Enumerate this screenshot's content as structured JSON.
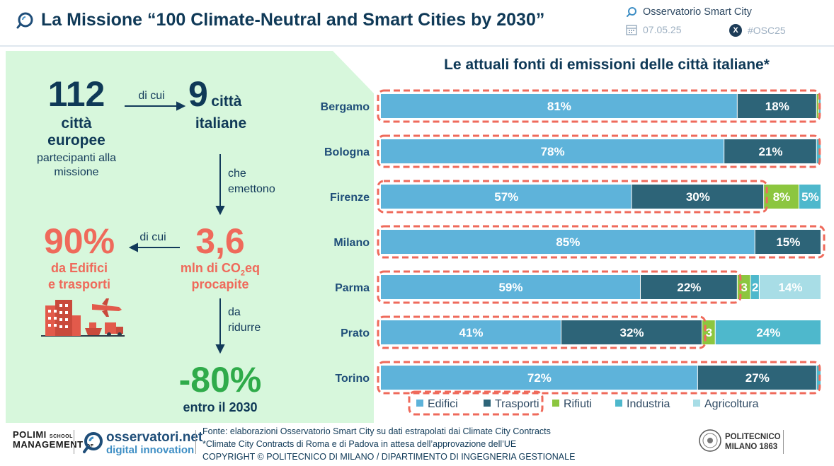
{
  "header": {
    "title": "La Missione “100 Climate-Neutral and Smart Cities by 2030”",
    "org": "Osservatorio Smart City",
    "date": "07.05.25",
    "hashtag": "#OSC25",
    "x_label": "X"
  },
  "left": {
    "european_cities_number": "112",
    "european_cities_label_1": "città",
    "european_cities_label_2": "europee",
    "participants_1": "partecipanti alla",
    "participants_2": "missione",
    "di_cui_1": "di cui",
    "italian_cities_number": "9",
    "italian_cities_label_1": "città",
    "italian_cities_label_2": "italiane",
    "che_emettono_1": "che",
    "che_emettono_2": "emettono",
    "emissions_number": "3,6",
    "emissions_unit_1": "mln di CO",
    "emissions_unit_sub": "2",
    "emissions_unit_2": "eq",
    "emissions_unit_3": "procapite",
    "di_cui_2": "di cui",
    "share_number": "90%",
    "share_label_1": "da Edifici",
    "share_label_2": "e trasporti",
    "da_ridurre_1": "da",
    "da_ridurre_2": "ridurre",
    "target_number": "-80%",
    "target_label": "entro il 2030"
  },
  "chart_data": {
    "type": "bar",
    "orientation": "horizontal",
    "stacked": true,
    "title": "Le attuali fonti di emissioni delle città italiane*",
    "categories": [
      "Bergamo",
      "Bologna",
      "Firenze",
      "Milano",
      "Parma",
      "Prato",
      "Torino"
    ],
    "series": [
      {
        "name": "Edifici",
        "color": "#5eb3da",
        "values": [
          81,
          78,
          57,
          85,
          59,
          41,
          72
        ]
      },
      {
        "name": "Trasporti",
        "color": "#2d6478",
        "values": [
          18,
          21,
          30,
          15,
          22,
          32,
          27
        ]
      },
      {
        "name": "Rifiuti",
        "color": "#8cc63f",
        "values": [
          0.5,
          0,
          8,
          0,
          3,
          3,
          0
        ]
      },
      {
        "name": "Industria",
        "color": "#4eb8cc",
        "values": [
          0.5,
          1,
          5,
          0,
          2,
          24,
          1
        ]
      },
      {
        "name": "Agricoltura",
        "color": "#a8dde6",
        "values": [
          0,
          0,
          0,
          0,
          14,
          0,
          0
        ]
      }
    ],
    "data_labels": [
      [
        "81%",
        "18%",
        "",
        "",
        ""
      ],
      [
        "78%",
        "21%",
        "",
        "",
        ""
      ],
      [
        "57%",
        "30%",
        "8%",
        "5%",
        ""
      ],
      [
        "85%",
        "15%",
        "",
        "",
        ""
      ],
      [
        "59%",
        "22%",
        "3",
        "2",
        "14%"
      ],
      [
        "41%",
        "32%",
        "3",
        "24%",
        ""
      ],
      [
        "72%",
        "27%",
        "",
        "",
        ""
      ]
    ],
    "legend_labels": [
      "Edifici",
      "Trasporti",
      "Rifiuti",
      "Industria",
      "Agricoltura"
    ],
    "highlight_color": "#ef6a5b",
    "xlim": [
      0,
      100
    ],
    "legend_position": "bottom"
  },
  "footer": {
    "polimi_1": "POLIMI",
    "polimi_2": "MANAGEMENT",
    "polimi_small_1": "SCHOOL",
    "polimi_small_2": "OF",
    "osservatori_1": "osservatori.net",
    "osservatori_2": "digital innovation",
    "source_1": "Fonte: elaborazioni Osservatorio Smart City su dati estrapolati dai Climate City Contracts",
    "source_2": "*Climate City Contracts di Roma e di Padova in attesa dell’approvazione dell’UE",
    "source_3": "COPYRIGHT © POLITECNICO DI MILANO / DIPARTIMENTO DI INGEGNERIA GESTIONALE",
    "politecnico_1": "POLITECNICO",
    "politecnico_2": "MILANO 1863"
  }
}
